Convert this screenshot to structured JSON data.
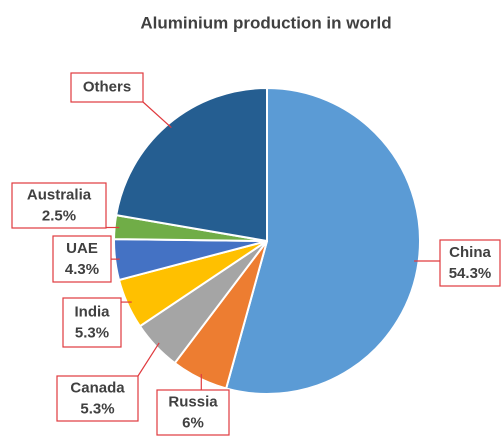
{
  "chart_data": {
    "type": "pie",
    "title": "Aluminium production in world",
    "categories": [
      "China",
      "Russia",
      "Canada",
      "India",
      "UAE",
      "Australia",
      "Others"
    ],
    "values": [
      54.3,
      6,
      5.3,
      5.3,
      4.3,
      2.5,
      22.3
    ],
    "value_labels": [
      "54.3%",
      "6%",
      "5.3%",
      "5.3%",
      "4.3%",
      "2.5%",
      null
    ],
    "colors": [
      "#5b9bd5",
      "#ed7d31",
      "#a5a5a5",
      "#ffc000",
      "#4472c4",
      "#70ad47",
      "#255e91"
    ]
  }
}
